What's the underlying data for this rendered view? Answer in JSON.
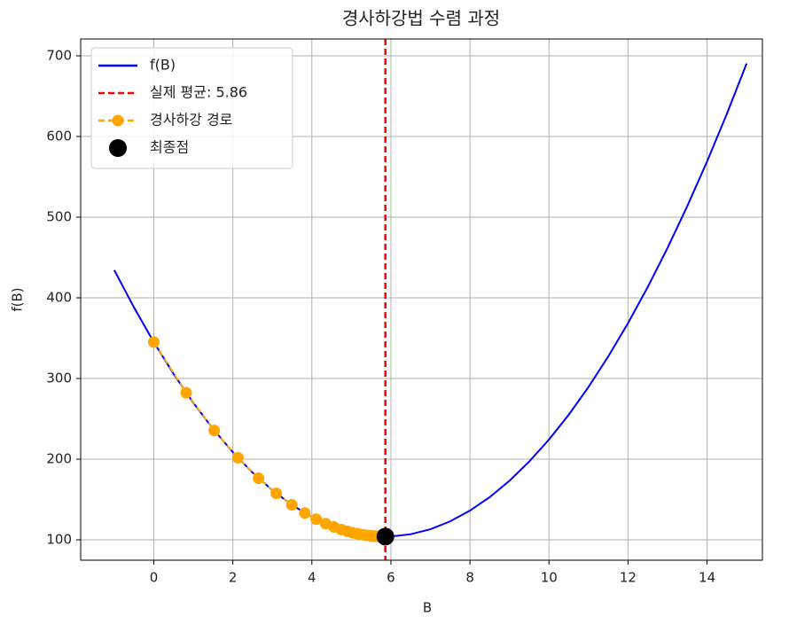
{
  "chart_data": {
    "type": "line",
    "title": "경사하강법 수렴 과정",
    "xlabel": "B",
    "ylabel": "f(B)",
    "xlim": [
      -1.85,
      15.4
    ],
    "ylim": [
      74.7,
      720.9
    ],
    "xticks": [
      0,
      2,
      4,
      6,
      8,
      10,
      12,
      14
    ],
    "yticks": [
      100,
      200,
      300,
      400,
      500,
      600,
      700
    ],
    "grid": true,
    "legend": "upper left",
    "series": [
      {
        "name": "f(B)",
        "color": "#0000ff",
        "style": "solid",
        "marker": false,
        "x": [
          -1,
          -0.5,
          0,
          0.5,
          1,
          1.5,
          2,
          2.5,
          3,
          3.5,
          4,
          4.5,
          5,
          5.5,
          6,
          6.5,
          7,
          7.5,
          8,
          8.5,
          9,
          9.5,
          10,
          10.5,
          11,
          11.5,
          12,
          12.5,
          13,
          13.5,
          14,
          14.5,
          15
        ],
        "values": [
          434.4,
          388.0,
          345.1,
          305.7,
          269.8,
          237.5,
          208.6,
          183.3,
          161.4,
          143.1,
          128.3,
          117.0,
          109.2,
          104.9,
          104.1,
          106.9,
          113.1,
          122.9,
          136.2,
          152.9,
          173.2,
          197.0,
          224.3,
          255.1,
          289.5,
          327.3,
          368.7,
          413.5,
          461.9,
          513.8,
          569.1,
          628.0,
          690.5
        ]
      },
      {
        "name": "경사하강 경로",
        "color": "#ffa500",
        "style": "dashed",
        "marker": true,
        "x": [
          0,
          0.82,
          1.53,
          2.13,
          2.65,
          3.1,
          3.49,
          3.82,
          4.11,
          4.35,
          4.56,
          4.75,
          4.9,
          5.03,
          5.15,
          5.25,
          5.34,
          5.41,
          5.47,
          5.53,
          5.57,
          5.61,
          5.65,
          5.68,
          5.7
        ],
        "values": [
          345.1,
          282.3,
          235.6,
          201.7,
          176.3,
          157.5,
          143.4,
          133.2,
          125.5,
          120.0,
          115.9,
          112.6,
          110.5,
          108.8,
          107.5,
          106.6,
          105.9,
          105.4,
          105.1,
          104.8,
          104.6,
          104.4,
          104.3,
          104.2,
          104.2
        ]
      }
    ],
    "vlines": [
      {
        "name": "실제 평균: 5.86",
        "color": "#ff0000",
        "style": "dashed",
        "x": 5.86
      }
    ],
    "points": [
      {
        "name": "최종점",
        "color": "#000000",
        "x": 5.86,
        "y": 104
      }
    ]
  }
}
